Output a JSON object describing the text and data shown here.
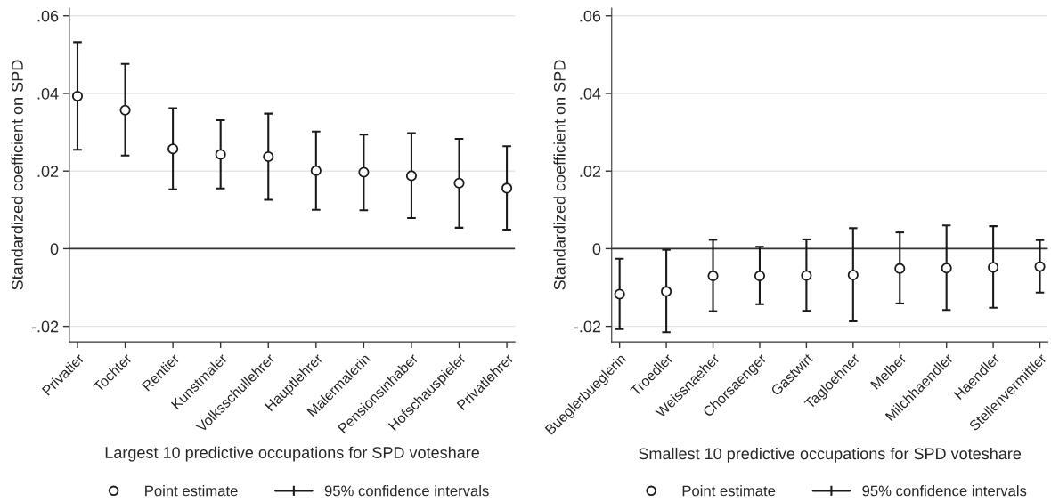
{
  "chart_data": [
    {
      "type": "scatter",
      "xlabel": "Largest 10 predictive occupations for SPD voteshare",
      "ylabel": "Standardized coefficient on SPD",
      "categories": [
        "Privatier",
        "Tochter",
        "Rentier",
        "Kunstmaler",
        "Volksschullehrer",
        "Hauptlehrer",
        "Malermalerin",
        "Pensionsinhaber",
        "Hofschauspieler",
        "Privatlehrer"
      ],
      "series": [
        {
          "name": "Point estimate",
          "color": "#1a1a1a",
          "values": [
            0.0393,
            0.0357,
            0.0257,
            0.0243,
            0.0237,
            0.0201,
            0.0197,
            0.0188,
            0.0169,
            0.0156
          ],
          "errors": [
            [
              0.0255,
              0.0532
            ],
            [
              0.024,
              0.0476
            ],
            [
              0.0153,
              0.0362
            ],
            [
              0.0155,
              0.0331
            ],
            [
              0.0126,
              0.0348
            ],
            [
              0.01,
              0.0302
            ],
            [
              0.0099,
              0.0294
            ],
            [
              0.0079,
              0.0298
            ],
            [
              0.0054,
              0.0283
            ],
            [
              0.0049,
              0.0264
            ]
          ]
        }
      ],
      "annotations": [
        "95% confidence intervals"
      ],
      "ylim": [
        -0.024,
        0.062
      ],
      "yticks": [
        {
          "value": -0.02,
          "label": "-.02"
        },
        0,
        {
          "value": 0.02,
          "label": ".02"
        },
        {
          "value": 0.04,
          "label": ".04"
        },
        {
          "value": 0.06,
          "label": ".06"
        }
      ],
      "ref_lines": [
        {
          "axis": "y",
          "value": 0,
          "color": "#333333"
        }
      ],
      "grid": "y",
      "legend": "bottom",
      "marker": "circle"
    },
    {
      "type": "scatter",
      "xlabel": "Smallest 10 predictive occupations for SPD voteshare",
      "ylabel": "Standardized coefficient on SPD",
      "categories": [
        "Bueglerbueglerin",
        "Troedler",
        "Weissnaeher",
        "Chorsaenger",
        "Gastwirt",
        "Tagloehner",
        "Melber",
        "Milchhaendler",
        "Haendler",
        "Stellenvermittler"
      ],
      "series": [
        {
          "name": "Point estimate",
          "color": "#1a1a1a",
          "values": [
            -0.0117,
            -0.011,
            -0.007,
            -0.007,
            -0.0069,
            -0.0068,
            -0.0051,
            -0.005,
            -0.0048,
            -0.0046
          ],
          "errors": [
            [
              -0.0207,
              -0.0026
            ],
            [
              -0.0215,
              -0.0003
            ],
            [
              -0.0161,
              0.0023
            ],
            [
              -0.0143,
              0.0005
            ],
            [
              -0.016,
              0.0024
            ],
            [
              -0.0187,
              0.0053
            ],
            [
              -0.0141,
              0.0042
            ],
            [
              -0.0158,
              0.006
            ],
            [
              -0.0152,
              0.0058
            ],
            [
              -0.0113,
              0.0022
            ]
          ]
        }
      ],
      "annotations": [
        "95% confidence intervals"
      ],
      "ylim": [
        -0.024,
        0.062
      ],
      "yticks": [
        {
          "value": -0.02,
          "label": "-.02"
        },
        0,
        {
          "value": 0.02,
          "label": ".02"
        },
        {
          "value": 0.04,
          "label": ".04"
        },
        {
          "value": 0.06,
          "label": ".06"
        }
      ],
      "ref_lines": [
        {
          "axis": "y",
          "value": 0,
          "color": "#333333"
        }
      ],
      "grid": "y",
      "legend": "bottom",
      "marker": "circle"
    }
  ]
}
